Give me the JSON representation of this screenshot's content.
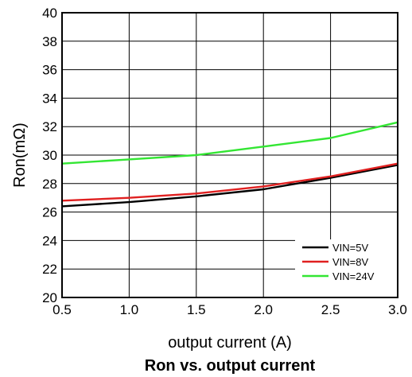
{
  "chart_data": {
    "type": "line",
    "title": "Ron vs. output current",
    "xlabel": "output current (A)",
    "ylabel": "Ron(mΩ)",
    "xlim": [
      0.5,
      3.0
    ],
    "ylim": [
      20,
      40
    ],
    "xticks": [
      "0.5",
      "1.0",
      "1.5",
      "2.0",
      "2.5",
      "3.0"
    ],
    "yticks": [
      "20",
      "22",
      "24",
      "26",
      "28",
      "30",
      "32",
      "34",
      "36",
      "38",
      "40"
    ],
    "grid": true,
    "legend_position": "bottom-right",
    "x": [
      0.5,
      1.0,
      1.5,
      2.0,
      2.5,
      3.0
    ],
    "series": [
      {
        "name": "VIN=5V",
        "color": "#000000",
        "values": [
          26.4,
          26.7,
          27.1,
          27.6,
          28.4,
          29.3
        ]
      },
      {
        "name": "VIN=8V",
        "color": "#e02020",
        "values": [
          26.8,
          27.0,
          27.3,
          27.8,
          28.5,
          29.4
        ]
      },
      {
        "name": "VIN=24V",
        "color": "#33e633",
        "values": [
          29.4,
          29.7,
          30.0,
          30.6,
          31.2,
          32.3
        ]
      }
    ]
  }
}
